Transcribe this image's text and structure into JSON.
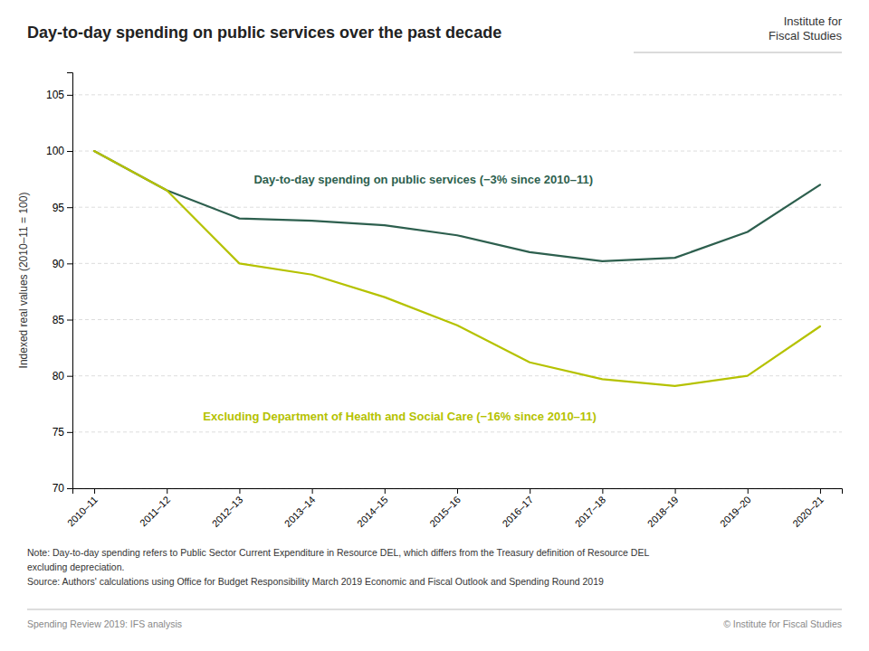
{
  "chart_data": {
    "type": "line",
    "title": "Day-to-day spending on public services over the past decade",
    "ylabel": "Indexed real values (2010–11 = 100)",
    "categories": [
      "2010–11",
      "2011–12",
      "2012–13",
      "2013–14",
      "2014–15",
      "2015–16",
      "2016–17",
      "2017–18",
      "2018–19",
      "2019–20",
      "2020–21"
    ],
    "series": [
      {
        "color": "#2d5f4e",
        "values": [
          100.0,
          96.5,
          94.0,
          93.8,
          93.4,
          92.5,
          91.0,
          90.2,
          90.5,
          92.8,
          97.0
        ]
      },
      {
        "color": "#b5c200",
        "values": [
          100.0,
          96.5,
          90.0,
          89.0,
          87.0,
          84.5,
          81.2,
          79.7,
          79.1,
          80.0,
          84.4
        ]
      }
    ],
    "ylim": [
      70,
      107
    ],
    "yticks": [
      70,
      75,
      80,
      85,
      90,
      95,
      100,
      105
    ],
    "grid": true,
    "annotations": [
      "Day-to-day spending on public services (−3% since 2010–11)",
      "Excluding Department of Health and Social Care (−16% since 2010–11)"
    ],
    "notes": [
      "Note: Day-to-day spending refers to Public Sector Current Expenditure in Resource DEL, which differs from the Treasury definition of Resource DEL",
      "excluding depreciation.",
      "Source: Authors' calculations using Office for Budget Responsibility March 2019 Economic and Fiscal Outlook and Spending Round 2019"
    ],
    "footer": [
      "Spending Review 2019: IFS analysis",
      "© Institute for Fiscal Studies"
    ],
    "logo": [
      "Institute for",
      "Fiscal Studies"
    ]
  }
}
